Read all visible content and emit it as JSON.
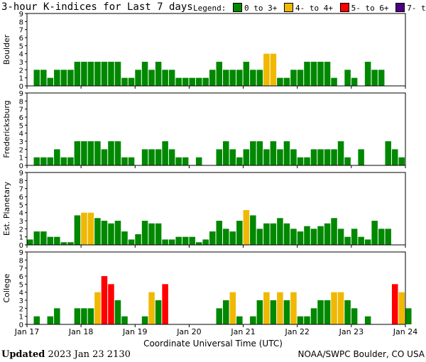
{
  "title": "3-hour K-indices for Last 7 days",
  "legend": {
    "label": "Legend:",
    "items": [
      {
        "label": "0 to 3+",
        "color": "#008800"
      },
      {
        "label": "4- to 4+",
        "color": "#f0b800"
      },
      {
        "label": "5- to 6+",
        "color": "#ff0000"
      },
      {
        "label": "7- to 9",
        "color": "#4b0082"
      }
    ]
  },
  "footer": {
    "updated_label": "Updated",
    "updated_value": "2023 Jan 23 2130",
    "credit": "NOAA/SWPC Boulder, CO USA"
  },
  "chart_data": {
    "type": "bar",
    "xlabel": "Coordinate Universal Time (UTC)",
    "x_ticks": [
      "Jan 17",
      "Jan 18",
      "Jan 19",
      "Jan 20",
      "Jan 21",
      "Jan 22",
      "Jan 23",
      "Jan 24"
    ],
    "ylim": [
      0,
      9
    ],
    "y_ticks": [
      "0",
      "1",
      "2",
      "3",
      "4",
      "5",
      "6",
      "7",
      "8",
      "9"
    ],
    "interval_hours": 3,
    "panels": [
      {
        "name": "Boulder",
        "values": [
          0,
          2,
          2,
          1,
          2,
          2,
          2,
          3,
          3,
          3,
          3,
          3,
          3,
          3,
          1,
          1,
          2,
          3,
          2,
          3,
          2,
          2,
          1,
          1,
          1,
          1,
          1,
          2,
          3,
          2,
          2,
          2,
          3,
          2,
          2,
          4,
          4,
          1,
          1,
          2,
          2,
          3,
          3,
          3,
          3,
          1,
          0,
          2,
          1,
          0,
          3,
          2,
          2,
          0
        ]
      },
      {
        "name": "Fredericksburg",
        "values": [
          0,
          1,
          1,
          1,
          2,
          1,
          1,
          3,
          3,
          3,
          3,
          2,
          3,
          3,
          1,
          1,
          0,
          2,
          2,
          2,
          3,
          2,
          1,
          1,
          0,
          1,
          0,
          0,
          2,
          3,
          2,
          1,
          2,
          3,
          3,
          2,
          3,
          2,
          3,
          2,
          1,
          1,
          2,
          2,
          2,
          2,
          3,
          1,
          0,
          2,
          0,
          0,
          0,
          3,
          2,
          1
        ]
      },
      {
        "name": "Est. Planetary",
        "values": [
          0.67,
          1.67,
          1.67,
          1,
          1,
          0.33,
          0.33,
          3.67,
          4,
          4,
          3.33,
          3,
          2.67,
          3,
          1.67,
          0.67,
          1.33,
          3,
          2.67,
          2.67,
          0.67,
          0.67,
          1,
          1,
          1,
          0.33,
          0.67,
          1.67,
          3,
          2,
          1.67,
          3,
          4.33,
          3.67,
          2,
          2.67,
          2.67,
          3.33,
          2.67,
          2,
          1.67,
          2.33,
          2,
          2.33,
          2.67,
          3.33,
          2,
          1,
          2,
          1,
          0.67,
          3,
          2,
          2
        ]
      },
      {
        "name": "College",
        "values": [
          0,
          1,
          0,
          1,
          2,
          0,
          0,
          2,
          2,
          2,
          4,
          6,
          5,
          3,
          1,
          0,
          0,
          1,
          4,
          3,
          5,
          0,
          0,
          0,
          0,
          0,
          0,
          0,
          2,
          3,
          4,
          1,
          0,
          1,
          3,
          4,
          3,
          4,
          3,
          4,
          1,
          1,
          2,
          3,
          3,
          4,
          4,
          3,
          2,
          0,
          1,
          0,
          0,
          0,
          5,
          4,
          2,
          0
        ]
      }
    ]
  }
}
